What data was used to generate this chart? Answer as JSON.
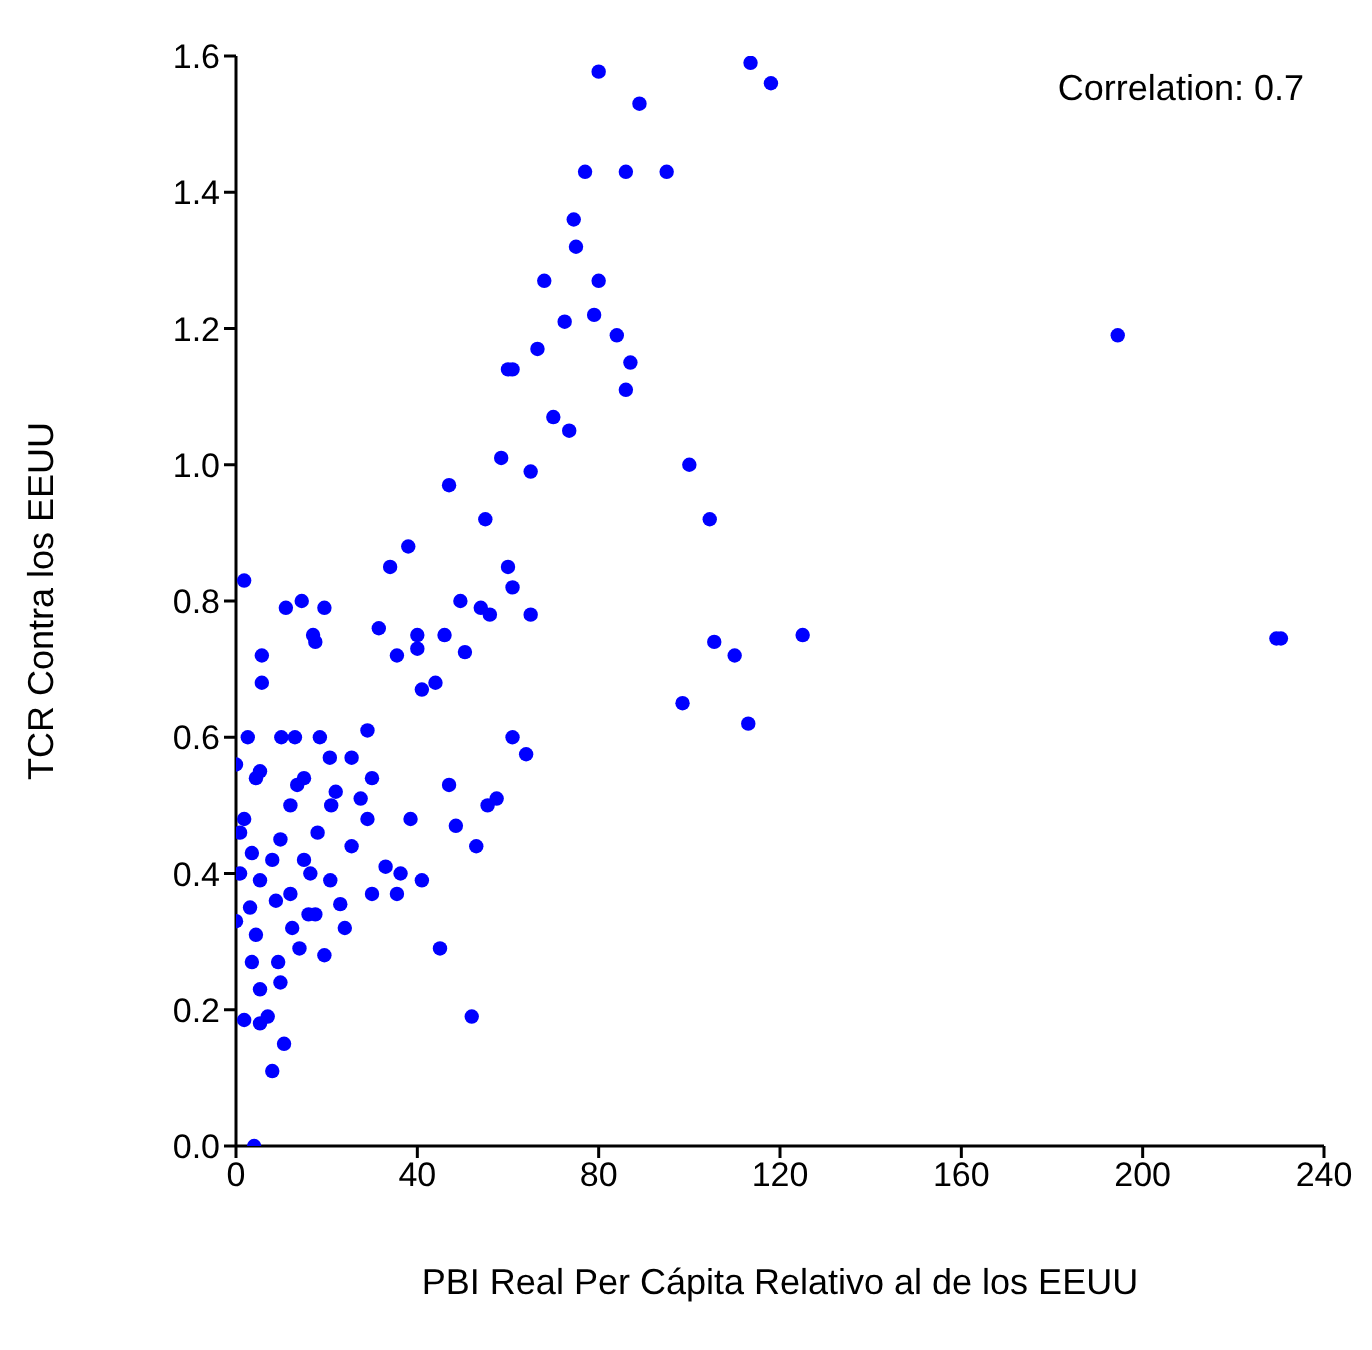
{
  "chart_data": {
    "type": "scatter",
    "xlabel": "PBI Real Per Cápita Relativo al de los EEUU",
    "ylabel": "TCR Contra los EEUU",
    "annotations": [
      "Correlation: 0.7"
    ],
    "xlim": [
      0,
      240
    ],
    "xticks": [
      0,
      40,
      80,
      120,
      160,
      200,
      240
    ],
    "ylim": [
      0,
      1.6
    ],
    "yticks": [
      {
        "value": 0,
        "label": "0.0"
      },
      {
        "value": 0.2,
        "label": "0.2"
      },
      {
        "value": 0.4,
        "label": "0.4"
      },
      {
        "value": 0.6,
        "label": "0.6"
      },
      {
        "value": 0.8,
        "label": "0.8"
      },
      {
        "value": 1.0,
        "label": "1.0"
      },
      {
        "value": 1.2,
        "label": "1.2"
      },
      {
        "value": 1.4,
        "label": "1.4"
      },
      {
        "value": 1.6,
        "label": "1.6"
      }
    ],
    "grid": false,
    "legend": false,
    "marker": "circle",
    "series": [
      {
        "color": "#0000ff",
        "x": [
          80,
          89,
          113.5,
          118,
          77,
          86,
          95,
          74.5,
          75,
          68,
          80,
          72.5,
          79,
          84,
          66.5,
          87,
          60,
          61,
          86,
          70,
          73.5,
          58.5,
          65,
          100,
          47,
          104.5,
          55,
          38,
          34,
          60,
          61,
          1.8,
          14.5,
          11,
          19.5,
          49.5,
          54,
          56,
          65,
          40,
          46,
          17,
          17.5,
          125,
          105.5,
          110,
          31.5,
          40,
          35.5,
          41,
          5.7,
          5.7,
          50.5,
          44,
          229.5,
          230.5,
          194.5,
          98.5,
          113,
          2.6,
          10,
          13,
          18.5,
          29,
          61,
          64,
          20.7,
          0,
          5.3,
          15,
          13.5,
          22,
          30,
          57.5,
          55.5,
          47,
          38.5,
          48.5,
          53,
          29,
          25.5,
          18,
          12,
          9.8,
          1.8,
          3.5,
          0.9,
          5.3,
          8.8,
          3.1,
          12,
          16.4,
          20.8,
          23,
          30,
          36.3,
          41,
          35.5,
          24,
          19.5,
          14,
          9.3,
          3.5,
          9.8,
          5.3,
          1.8,
          7,
          10.6,
          8,
          45,
          52,
          4,
          12.4,
          0,
          4.4,
          16,
          5.3,
          4.4,
          0.9,
          8,
          25.5,
          21,
          27.5,
          33,
          15,
          17.5
        ],
        "values": [
          1.577,
          1.53,
          1.59,
          1.56,
          1.43,
          1.43,
          1.43,
          1.36,
          1.32,
          1.27,
          1.27,
          1.21,
          1.22,
          1.19,
          1.17,
          1.15,
          1.14,
          1.14,
          1.11,
          1.07,
          1.05,
          1.01,
          0.99,
          1.0,
          0.97,
          0.92,
          0.92,
          0.88,
          0.85,
          0.85,
          0.82,
          0.83,
          0.8,
          0.79,
          0.79,
          0.8,
          0.79,
          0.78,
          0.78,
          0.75,
          0.75,
          0.75,
          0.74,
          0.75,
          0.74,
          0.72,
          0.76,
          0.73,
          0.72,
          0.67,
          0.72,
          0.68,
          0.725,
          0.68,
          0.745,
          0.745,
          1.19,
          0.65,
          0.62,
          0.6,
          0.6,
          0.6,
          0.6,
          0.61,
          0.6,
          0.575,
          0.57,
          0.56,
          0.55,
          0.54,
          0.53,
          0.52,
          0.54,
          0.51,
          0.5,
          0.53,
          0.48,
          0.47,
          0.44,
          0.48,
          0.44,
          0.46,
          0.5,
          0.45,
          0.48,
          0.43,
          0.4,
          0.39,
          0.36,
          0.35,
          0.37,
          0.4,
          0.39,
          0.355,
          0.37,
          0.4,
          0.39,
          0.37,
          0.32,
          0.28,
          0.29,
          0.27,
          0.27,
          0.24,
          0.18,
          0.185,
          0.19,
          0.15,
          0.11,
          0.29,
          0.19,
          0.0,
          0.32,
          0.33,
          0.31,
          0.34,
          0.23,
          0.54,
          0.46,
          0.42,
          0.57,
          0.5,
          0.51,
          0.41,
          0.42,
          0.34
        ]
      }
    ]
  }
}
